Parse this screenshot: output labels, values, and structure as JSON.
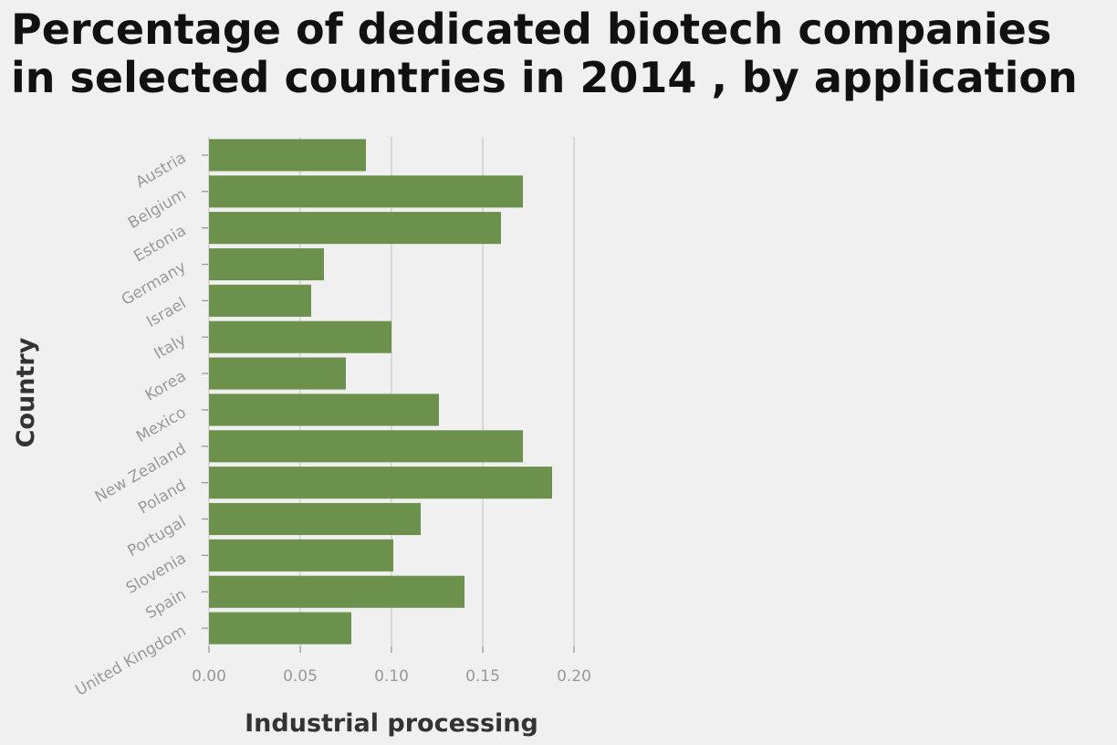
{
  "chart_data": {
    "type": "bar",
    "orientation": "horizontal",
    "title": "Percentage of dedicated biotech companies in selected countries in 2014 , by application",
    "title_lines": [
      "Percentage of dedicated biotech companies",
      "in selected countries in 2014 , by application"
    ],
    "xlabel": "Industrial processing",
    "ylabel": "Country",
    "categories": [
      "Austria",
      "Belgium",
      "Estonia",
      "Germany",
      "Israel",
      "Italy",
      "Korea",
      "Mexico",
      "New Zealand",
      "Poland",
      "Portugal",
      "Slovenia",
      "Spain",
      "United Kingdom"
    ],
    "values": [
      0.086,
      0.172,
      0.16,
      0.063,
      0.056,
      0.1,
      0.075,
      0.126,
      0.172,
      0.188,
      0.116,
      0.101,
      0.14,
      0.078
    ],
    "xlim": [
      0,
      0.2
    ],
    "x_ticks": [
      "0.00",
      "0.05",
      "0.10",
      "0.15",
      "0.20"
    ],
    "grid": true,
    "legend": "none",
    "bar_color": "#6b914c",
    "grid_color": "#cccccc"
  }
}
